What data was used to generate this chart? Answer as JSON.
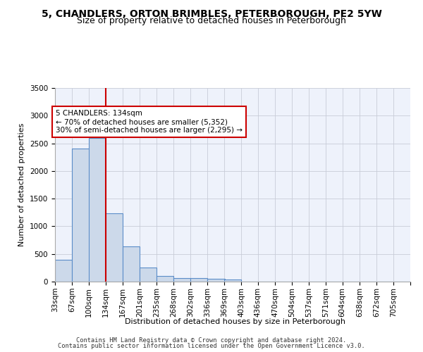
{
  "title_line1": "5, CHANDLERS, ORTON BRIMBLES, PETERBOROUGH, PE2 5YW",
  "title_line2": "Size of property relative to detached houses in Peterborough",
  "xlabel": "Distribution of detached houses by size in Peterborough",
  "ylabel": "Number of detached properties",
  "bar_color": "#ccd9ea",
  "bar_edge_color": "#5b8dc8",
  "vline_color": "#cc0000",
  "vline_position": 134,
  "annotation_text": "5 CHANDLERS: 134sqm\n← 70% of detached houses are smaller (5,352)\n30% of semi-detached houses are larger (2,295) →",
  "annotation_box_color": "#cc0000",
  "categories": [
    "33sqm",
    "67sqm",
    "100sqm",
    "134sqm",
    "167sqm",
    "201sqm",
    "235sqm",
    "268sqm",
    "302sqm",
    "336sqm",
    "369sqm",
    "403sqm",
    "436sqm",
    "470sqm",
    "504sqm",
    "537sqm",
    "571sqm",
    "604sqm",
    "638sqm",
    "672sqm",
    "705sqm"
  ],
  "bin_edges": [
    33,
    67,
    100,
    134,
    167,
    201,
    235,
    268,
    302,
    336,
    369,
    403,
    436,
    470,
    504,
    537,
    571,
    604,
    638,
    672,
    705
  ],
  "bin_width": 34,
  "values": [
    390,
    2400,
    2600,
    1240,
    640,
    260,
    100,
    65,
    60,
    55,
    40,
    0,
    0,
    0,
    0,
    0,
    0,
    0,
    0,
    0,
    0
  ],
  "ylim": [
    0,
    3500
  ],
  "yticks": [
    0,
    500,
    1000,
    1500,
    2000,
    2500,
    3000,
    3500
  ],
  "footer_line1": "Contains HM Land Registry data © Crown copyright and database right 2024.",
  "footer_line2": "Contains public sector information licensed under the Open Government Licence v3.0.",
  "background_color": "#eef2fb",
  "grid_color": "#c8ccd8",
  "title_fontsize": 10,
  "subtitle_fontsize": 9,
  "axis_label_fontsize": 8,
  "tick_fontsize": 7.5,
  "annotation_fontsize": 7.5
}
